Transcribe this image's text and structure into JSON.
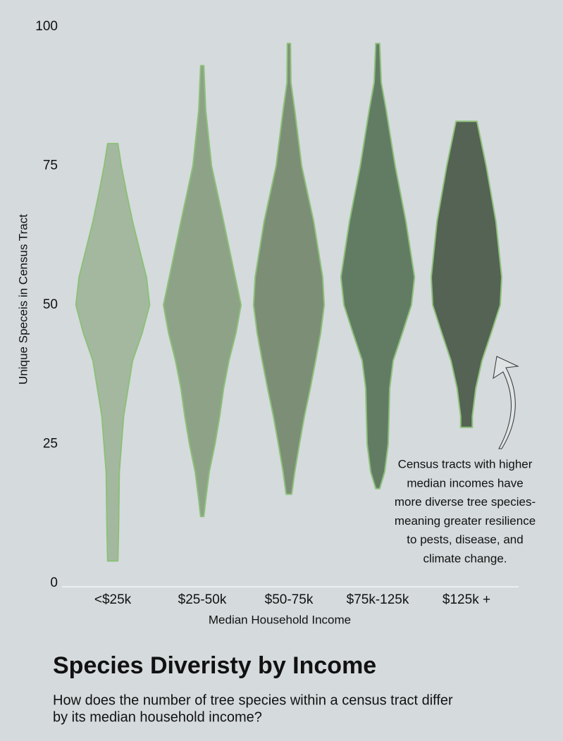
{
  "chart_data": {
    "type": "violin",
    "title": "Species Diveristy by Income",
    "subtitle": [
      "How does the number of tree species within a census tract differ",
      "by its median household income?"
    ],
    "x_label": "Median Household Income",
    "y_label": "Unique Speceis in Census Tract",
    "categories": [
      "<$25k",
      "$25-50k",
      "$50-75k",
      "$75k-125k",
      "$125k +"
    ],
    "ylim": [
      0,
      100
    ],
    "yticks": [
      0,
      25,
      50,
      75,
      100
    ],
    "grid": false,
    "stroke": "#8cc07a",
    "series": [
      {
        "color": "#a4b8a0",
        "y": [
          4,
          10,
          20,
          30,
          40,
          45,
          50,
          55,
          60,
          65,
          70,
          75,
          79
        ],
        "widths": [
          0.13,
          0.15,
          0.17,
          0.28,
          0.51,
          0.76,
          0.95,
          0.87,
          0.69,
          0.51,
          0.36,
          0.22,
          0.13
        ]
      },
      {
        "color": "#8da287",
        "y": [
          12,
          15,
          20,
          25,
          30,
          35,
          40,
          45,
          50,
          55,
          65,
          75,
          85,
          93
        ],
        "widths": [
          0.04,
          0.09,
          0.18,
          0.33,
          0.45,
          0.55,
          0.69,
          0.87,
          1,
          0.85,
          0.55,
          0.24,
          0.09,
          0.04
        ]
      },
      {
        "color": "#7c8e76",
        "y": [
          16,
          20,
          25,
          30,
          35,
          40,
          45,
          50,
          55,
          65,
          75,
          85,
          90,
          97
        ],
        "widths": [
          0.07,
          0.15,
          0.27,
          0.4,
          0.55,
          0.69,
          0.82,
          0.91,
          0.87,
          0.64,
          0.33,
          0.15,
          0.05,
          0.04
        ]
      },
      {
        "color": "#627c64",
        "y": [
          17,
          20,
          25,
          30,
          35,
          40,
          45,
          50,
          55,
          65,
          75,
          85,
          90,
          97
        ],
        "widths": [
          0.05,
          0.18,
          0.27,
          0.29,
          0.31,
          0.4,
          0.64,
          0.87,
          0.95,
          0.73,
          0.45,
          0.22,
          0.09,
          0.05
        ]
      },
      {
        "color": "#546353",
        "y": [
          28,
          30,
          35,
          40,
          45,
          50,
          55,
          65,
          75,
          83
        ],
        "widths": [
          0.15,
          0.15,
          0.24,
          0.4,
          0.64,
          0.87,
          0.91,
          0.76,
          0.51,
          0.27
        ]
      }
    ],
    "annotation": [
      "Census tracts with higher",
      "median incomes have",
      "more diverse tree species-",
      "meaning greater resilience",
      "to pests, disease, and",
      "climate change."
    ]
  }
}
